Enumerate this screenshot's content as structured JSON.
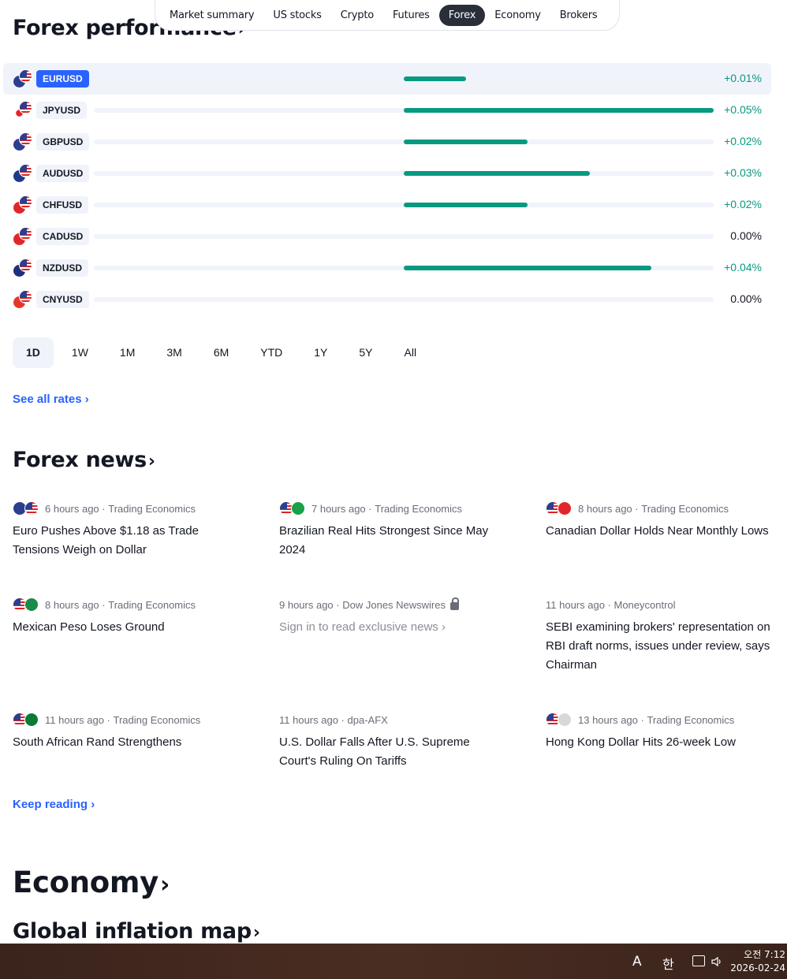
{
  "nav": {
    "items": [
      "Market summary",
      "US stocks",
      "Crypto",
      "Futures",
      "Forex",
      "Economy",
      "Brokers"
    ],
    "active": "Forex"
  },
  "forex_performance": {
    "title": "Forex performance",
    "rows": [
      {
        "ticker": "EURUSD",
        "change": "+0.01%",
        "fill_pct": 10,
        "selected": true,
        "flag_color": "#2c3e8f"
      },
      {
        "ticker": "JPYUSD",
        "change": "+0.05%",
        "fill_pct": 50,
        "selected": false,
        "flag_color": "#ffffff"
      },
      {
        "ticker": "GBPUSD",
        "change": "+0.02%",
        "fill_pct": 20,
        "selected": false,
        "flag_color": "#2c3e8f"
      },
      {
        "ticker": "AUDUSD",
        "change": "+0.03%",
        "fill_pct": 30,
        "selected": false,
        "flag_color": "#1f3a8a"
      },
      {
        "ticker": "CHFUSD",
        "change": "+0.02%",
        "fill_pct": 20,
        "selected": false,
        "flag_color": "#e0262b"
      },
      {
        "ticker": "CADUSD",
        "change": "0.00%",
        "fill_pct": 0,
        "selected": false,
        "flag_color": "#e0262b"
      },
      {
        "ticker": "NZDUSD",
        "change": "+0.04%",
        "fill_pct": 40,
        "selected": false,
        "flag_color": "#1f2f7a"
      },
      {
        "ticker": "CNYUSD",
        "change": "0.00%",
        "fill_pct": 0,
        "selected": false,
        "flag_color": "#e8352a"
      }
    ],
    "periods": [
      "1D",
      "1W",
      "1M",
      "3M",
      "6M",
      "YTD",
      "1Y",
      "5Y",
      "All"
    ],
    "active_period": "1D",
    "see_all": "See all rates"
  },
  "forex_news": {
    "title": "Forex news",
    "items": [
      {
        "time": "6 hours ago",
        "source": "Trading Economics",
        "headline": "Euro Pushes Above $1.18 as Trade Tensions Weigh on Dollar",
        "flags": [
          "#2c3e8f",
          "usa"
        ]
      },
      {
        "time": "7 hours ago",
        "source": "Trading Economics",
        "headline": "Brazilian Real Hits Strongest Since May 2024",
        "flags": [
          "usa",
          "#1aa14a"
        ]
      },
      {
        "time": "8 hours ago",
        "source": "Trading Economics",
        "headline": "Canadian Dollar Holds Near Monthly Lows",
        "flags": [
          "usa",
          "#e0262b"
        ]
      },
      {
        "time": "8 hours ago",
        "source": "Trading Economics",
        "headline": "Mexican Peso Loses Ground",
        "flags": [
          "usa",
          "#1a8a48"
        ]
      },
      {
        "time": "9 hours ago",
        "source": "Dow Jones Newswires",
        "headline": "Sign in to read exclusive news",
        "flags": [],
        "locked": true
      },
      {
        "time": "11 hours ago",
        "source": "Moneycontrol",
        "headline": "SEBI examining brokers' representation on RBI draft norms, issues under review, says Chairman",
        "flags": []
      },
      {
        "time": "11 hours ago",
        "source": "Trading Economics",
        "headline": "South African Rand Strengthens",
        "flags": [
          "usa",
          "#0a7a3a"
        ]
      },
      {
        "time": "11 hours ago",
        "source": "dpa-AFX",
        "headline": "U.S. Dollar Falls After U.S. Supreme Court's Ruling On Tariffs",
        "flags": []
      },
      {
        "time": "13 hours ago",
        "source": "Trading Economics",
        "headline": "Hong Kong Dollar Hits 26-week Low",
        "flags": [
          "usa",
          "#d8d8d8"
        ]
      }
    ],
    "keep_reading": "Keep reading"
  },
  "economy": {
    "title": "Economy",
    "subtitle": "Global inflation map"
  },
  "taskbar": {
    "ime_a": "A",
    "ime_ko": "한",
    "time": "오전 7:12",
    "date": "2026-02-24"
  }
}
